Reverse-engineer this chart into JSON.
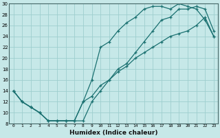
{
  "title": "",
  "xlabel": "Humidex (Indice chaleur)",
  "bg_color": "#c6e8e8",
  "line_color": "#1a7070",
  "grid_color": "#9ecece",
  "xlim": [
    -0.5,
    23.5
  ],
  "ylim": [
    8,
    30
  ],
  "xticks": [
    0,
    1,
    2,
    3,
    4,
    5,
    6,
    7,
    8,
    9,
    10,
    11,
    12,
    13,
    14,
    15,
    16,
    17,
    18,
    19,
    20,
    21,
    22,
    23
  ],
  "yticks": [
    8,
    10,
    12,
    14,
    16,
    18,
    20,
    22,
    24,
    26,
    28,
    30
  ],
  "curve1_x": [
    0,
    1,
    2,
    3,
    4,
    5,
    6,
    7,
    8,
    9,
    10,
    11,
    12,
    13,
    14,
    15,
    16,
    17,
    18,
    19,
    20,
    21,
    22,
    23
  ],
  "curve1_y": [
    14,
    12,
    11,
    10,
    8.5,
    8.5,
    8.5,
    8.5,
    12,
    16,
    22,
    23,
    25,
    26.5,
    27.5,
    29,
    29.5,
    29.5,
    29,
    30,
    29.5,
    29,
    27,
    24
  ],
  "curve2_x": [
    0,
    1,
    2,
    3,
    4,
    5,
    6,
    7,
    8,
    9,
    10,
    11,
    12,
    13,
    14,
    15,
    16,
    17,
    18,
    19,
    20,
    21,
    22,
    23
  ],
  "curve2_y": [
    14,
    12,
    11,
    10,
    8.5,
    8.5,
    8.5,
    8.5,
    8.5,
    12,
    14,
    16,
    18,
    19,
    21,
    23,
    25,
    27,
    27.5,
    29,
    29,
    29.5,
    29,
    25
  ],
  "curve3_x": [
    0,
    1,
    2,
    3,
    4,
    5,
    6,
    7,
    8,
    9,
    10,
    11,
    12,
    13,
    14,
    15,
    16,
    17,
    18,
    19,
    20,
    21,
    22,
    23
  ],
  "curve3_y": [
    14,
    12,
    11,
    10,
    8.5,
    8.5,
    8.5,
    8.5,
    12,
    13,
    15,
    16,
    17.5,
    18.5,
    20,
    21,
    22,
    23,
    24,
    24.5,
    25,
    26,
    27.5,
    24
  ]
}
